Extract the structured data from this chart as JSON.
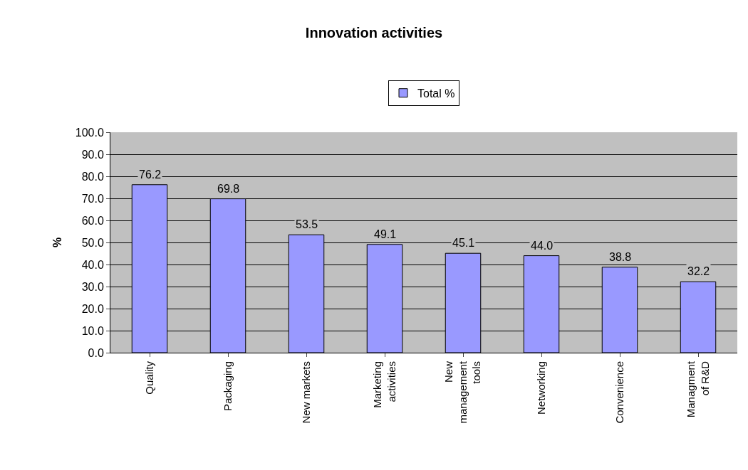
{
  "chart_data": {
    "type": "bar",
    "title": "Innovation activities",
    "ylabel": "%",
    "categories": [
      "Quality",
      "Packaging",
      "New markets",
      "Marketing activities",
      "New management tools",
      "Networking",
      "Convenience",
      "Managment of R&D"
    ],
    "series": [
      {
        "name": "Total %",
        "color": "#9999ff",
        "values": [
          76.2,
          69.8,
          53.5,
          49.1,
          45.1,
          44.0,
          38.8,
          32.2
        ],
        "value_labels": [
          "76.2",
          "69.8",
          "53.5",
          "49.1",
          "45.1",
          "44.0",
          "38.8",
          "32.2"
        ]
      }
    ],
    "ylim": [
      0,
      100
    ],
    "yticks": [
      {
        "value": 0,
        "label": "0.0"
      },
      {
        "value": 10,
        "label": "10.0"
      },
      {
        "value": 20,
        "label": "20.0"
      },
      {
        "value": 30,
        "label": "30.0"
      },
      {
        "value": 40,
        "label": "40.0"
      },
      {
        "value": 50,
        "label": "50.0"
      },
      {
        "value": 60,
        "label": "60.0"
      },
      {
        "value": 70,
        "label": "70.0"
      },
      {
        "value": 80,
        "label": "80.0"
      },
      {
        "value": 90,
        "label": "90.0"
      },
      {
        "value": 100,
        "label": "100.0"
      }
    ],
    "grid": "y",
    "legend": "top"
  }
}
